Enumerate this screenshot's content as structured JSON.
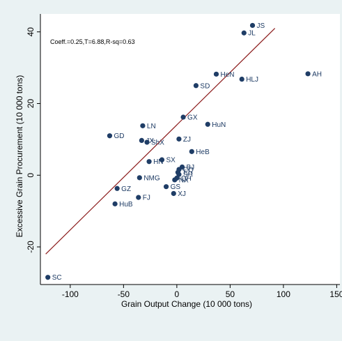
{
  "chart_data": {
    "type": "scatter",
    "xlabel": "Grain Output Change (10 000 tons)",
    "ylabel": "Excessive Grain Procurement (10 000 tons)",
    "annotation": "Coeff.=0.25,T=6.88,R-sq=0.63",
    "xlim": [
      -128,
      153
    ],
    "ylim": [
      -30.5,
      45
    ],
    "xticks": [
      -100,
      -50,
      0,
      50,
      100,
      150
    ],
    "yticks": [
      -20,
      0,
      20,
      40
    ],
    "grid": false,
    "colors": {
      "point": "#1f3d66",
      "fit_line": "#8b1a1a",
      "background": "#eaf2f3",
      "plot_bg": "#ffffff"
    },
    "fit_line": {
      "x": [
        -123,
        92
      ],
      "y": [
        -22,
        41
      ]
    },
    "points": [
      {
        "label": "JS",
        "x": 71,
        "y": 41.8
      },
      {
        "label": "JL",
        "x": 63,
        "y": 39.7
      },
      {
        "label": "AH",
        "x": 123,
        "y": 28.3
      },
      {
        "label": "HeN",
        "x": 37,
        "y": 28.2
      },
      {
        "label": "HLJ",
        "x": 61,
        "y": 26.8
      },
      {
        "label": "SD",
        "x": 18,
        "y": 25.0
      },
      {
        "label": "GX",
        "x": 6,
        "y": 16.2
      },
      {
        "label": "HuN",
        "x": 29,
        "y": 14.2
      },
      {
        "label": "LN",
        "x": -32,
        "y": 13.8
      },
      {
        "label": "GD",
        "x": -63,
        "y": 11.0
      },
      {
        "label": "ZJ",
        "x": 2,
        "y": 10.1
      },
      {
        "label": "JX",
        "x": -33,
        "y": 9.7
      },
      {
        "label": "ShX",
        "x": -28,
        "y": 9.2
      },
      {
        "label": "HeB",
        "x": 14,
        "y": 6.6
      },
      {
        "label": "SX",
        "x": -14,
        "y": 4.3
      },
      {
        "label": "HN",
        "x": -26,
        "y": 3.8
      },
      {
        "label": "BJ",
        "x": 5,
        "y": 2.3
      },
      {
        "label": "CQ",
        "x": 2,
        "y": 1.6
      },
      {
        "label": "TJ",
        "x": 1,
        "y": 0.8
      },
      {
        "label": "SH",
        "x": 2,
        "y": 0.2
      },
      {
        "label": "NX",
        "x": -2,
        "y": -1.3
      },
      {
        "label": "QH",
        "x": 0,
        "y": -0.8
      },
      {
        "label": "NMG",
        "x": -35,
        "y": -0.7
      },
      {
        "label": "GS",
        "x": -10,
        "y": -3.2
      },
      {
        "label": "GZ",
        "x": -56,
        "y": -3.7
      },
      {
        "label": "FJ",
        "x": -36,
        "y": -6.2
      },
      {
        "label": "XJ",
        "x": -3,
        "y": -5.1
      },
      {
        "label": "HuB",
        "x": -58,
        "y": -8.0
      },
      {
        "label": "SC",
        "x": -121,
        "y": -28.5
      }
    ]
  }
}
